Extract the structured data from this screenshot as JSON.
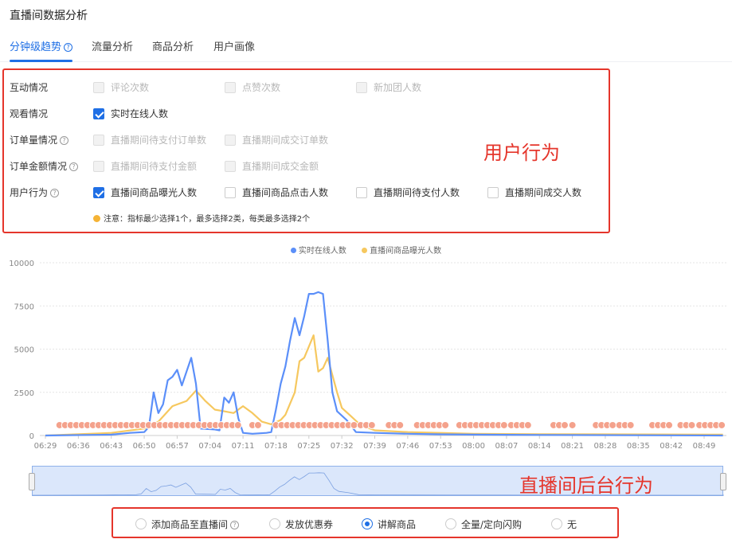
{
  "title": "直播间数据分析",
  "tabs": [
    {
      "label": "分钟级趋势",
      "active": true,
      "help": true
    },
    {
      "label": "流量分析"
    },
    {
      "label": "商品分析"
    },
    {
      "label": "用户画像"
    }
  ],
  "metrics": [
    {
      "label": "互动情况",
      "help": false,
      "options": [
        {
          "label": "评论次数",
          "state": "disabled"
        },
        {
          "label": "点赞次数",
          "state": "disabled"
        },
        {
          "label": "新加团人数",
          "state": "disabled"
        }
      ]
    },
    {
      "label": "观看情况",
      "help": false,
      "options": [
        {
          "label": "实时在线人数",
          "state": "checked"
        }
      ]
    },
    {
      "label": "订单量情况",
      "help": true,
      "options": [
        {
          "label": "直播期间待支付订单数",
          "state": "disabled"
        },
        {
          "label": "直播期间成交订单数",
          "state": "disabled"
        }
      ]
    },
    {
      "label": "订单金额情况",
      "help": true,
      "options": [
        {
          "label": "直播期间待支付金额",
          "state": "disabled"
        },
        {
          "label": "直播期间成交金额",
          "state": "disabled"
        }
      ]
    },
    {
      "label": "用户行为",
      "help": true,
      "options": [
        {
          "label": "直播间商品曝光人数",
          "state": "checked"
        },
        {
          "label": "直播间商品点击人数",
          "state": "unchecked"
        },
        {
          "label": "直播期间待支付人数",
          "state": "unchecked"
        },
        {
          "label": "直播期间成交人数",
          "state": "unchecked"
        }
      ]
    }
  ],
  "note": "注意：指标最少选择1个，最多选择2类，每类最多选择2个",
  "annotation_user": "用户行为",
  "annotation_backend": "直播间后台行为",
  "chart_data": {
    "type": "line",
    "ylim": [
      0,
      10000
    ],
    "yticks": [
      "0",
      "2500",
      "5000",
      "7500",
      "10000"
    ],
    "xticks": [
      "06:29",
      "06:36",
      "06:43",
      "06:50",
      "06:57",
      "07:04",
      "07:11",
      "07:18",
      "07:25",
      "07:32",
      "07:39",
      "07:46",
      "07:53",
      "08:00",
      "08:07",
      "08:14",
      "08:21",
      "08:28",
      "08:35",
      "08:42",
      "08:49"
    ],
    "xrange": [
      "06:29",
      "08:53"
    ],
    "grid": true,
    "legend": "top",
    "series": [
      {
        "name": "实时在线人数",
        "color": "#5b8ff9",
        "points": [
          [
            "06:29",
            0
          ],
          [
            "06:43",
            50
          ],
          [
            "06:47",
            150
          ],
          [
            "06:50",
            200
          ],
          [
            "06:51",
            500
          ],
          [
            "06:52",
            2500
          ],
          [
            "06:53",
            1300
          ],
          [
            "06:54",
            1800
          ],
          [
            "06:55",
            3200
          ],
          [
            "06:56",
            3400
          ],
          [
            "06:57",
            3800
          ],
          [
            "06:58",
            2900
          ],
          [
            "06:59",
            3700
          ],
          [
            "07:00",
            4500
          ],
          [
            "07:01",
            3000
          ],
          [
            "07:02",
            400
          ],
          [
            "07:05",
            350
          ],
          [
            "07:06",
            300
          ],
          [
            "07:07",
            2200
          ],
          [
            "07:08",
            1900
          ],
          [
            "07:09",
            2500
          ],
          [
            "07:10",
            1000
          ],
          [
            "07:11",
            150
          ],
          [
            "07:13",
            100
          ],
          [
            "07:16",
            150
          ],
          [
            "07:17",
            200
          ],
          [
            "07:18",
            1500
          ],
          [
            "07:19",
            3000
          ],
          [
            "07:20",
            4000
          ],
          [
            "07:21",
            5500
          ],
          [
            "07:22",
            6800
          ],
          [
            "07:23",
            5800
          ],
          [
            "07:24",
            6900
          ],
          [
            "07:25",
            8200
          ],
          [
            "07:26",
            8200
          ],
          [
            "07:27",
            8300
          ],
          [
            "07:28",
            8200
          ],
          [
            "07:29",
            5500
          ],
          [
            "07:30",
            2500
          ],
          [
            "07:31",
            1400
          ],
          [
            "07:33",
            900
          ],
          [
            "07:35",
            200
          ],
          [
            "07:39",
            150
          ],
          [
            "07:46",
            100
          ],
          [
            "07:53",
            70
          ],
          [
            "08:00",
            50
          ],
          [
            "08:14",
            30
          ],
          [
            "08:53",
            0
          ]
        ]
      },
      {
        "name": "直播间商品曝光人数",
        "color": "#f6c85f",
        "points": [
          [
            "06:29",
            0
          ],
          [
            "06:43",
            150
          ],
          [
            "06:50",
            400
          ],
          [
            "06:53",
            800
          ],
          [
            "06:56",
            1700
          ],
          [
            "06:59",
            2000
          ],
          [
            "07:01",
            2600
          ],
          [
            "07:03",
            2000
          ],
          [
            "07:05",
            1500
          ],
          [
            "07:07",
            1400
          ],
          [
            "07:09",
            1300
          ],
          [
            "07:11",
            1700
          ],
          [
            "07:13",
            1300
          ],
          [
            "07:15",
            800
          ],
          [
            "07:17",
            650
          ],
          [
            "07:19",
            900
          ],
          [
            "07:20",
            1200
          ],
          [
            "07:22",
            2500
          ],
          [
            "07:23",
            4300
          ],
          [
            "07:24",
            4500
          ],
          [
            "07:26",
            5800
          ],
          [
            "07:27",
            3700
          ],
          [
            "07:28",
            3900
          ],
          [
            "07:29",
            4500
          ],
          [
            "07:31",
            2500
          ],
          [
            "07:32",
            1600
          ],
          [
            "07:34",
            1100
          ],
          [
            "07:36",
            600
          ],
          [
            "07:39",
            300
          ],
          [
            "07:46",
            200
          ],
          [
            "07:53",
            150
          ],
          [
            "08:00",
            100
          ],
          [
            "08:14",
            80
          ],
          [
            "08:53",
            50
          ]
        ]
      }
    ],
    "event_markers": {
      "color": "#f4a28c",
      "value": 600,
      "ranges": [
        [
          "06:32",
          "07:10"
        ],
        [
          "07:13",
          "07:15"
        ],
        [
          "07:18",
          "07:35"
        ],
        [
          "07:36",
          "07:39"
        ],
        [
          "07:42",
          "07:45"
        ],
        [
          "07:48",
          "07:53"
        ],
        [
          "07:54",
          "07:55"
        ],
        [
          "07:57",
          "08:07"
        ],
        [
          "08:08",
          "08:12"
        ],
        [
          "08:17",
          "08:20"
        ],
        [
          "08:21",
          "08:21"
        ],
        [
          "08:26",
          "08:30"
        ],
        [
          "08:31",
          "08:34"
        ],
        [
          "08:38",
          "08:42"
        ],
        [
          "08:44",
          "08:47"
        ],
        [
          "08:48",
          "08:53"
        ]
      ]
    }
  },
  "actions": [
    {
      "label": "添加商品至直播间",
      "help": true,
      "selected": false
    },
    {
      "label": "发放优惠券",
      "selected": false
    },
    {
      "label": "讲解商品",
      "selected": true
    },
    {
      "label": "全量/定向闪购",
      "selected": false
    },
    {
      "label": "无",
      "selected": false
    }
  ]
}
